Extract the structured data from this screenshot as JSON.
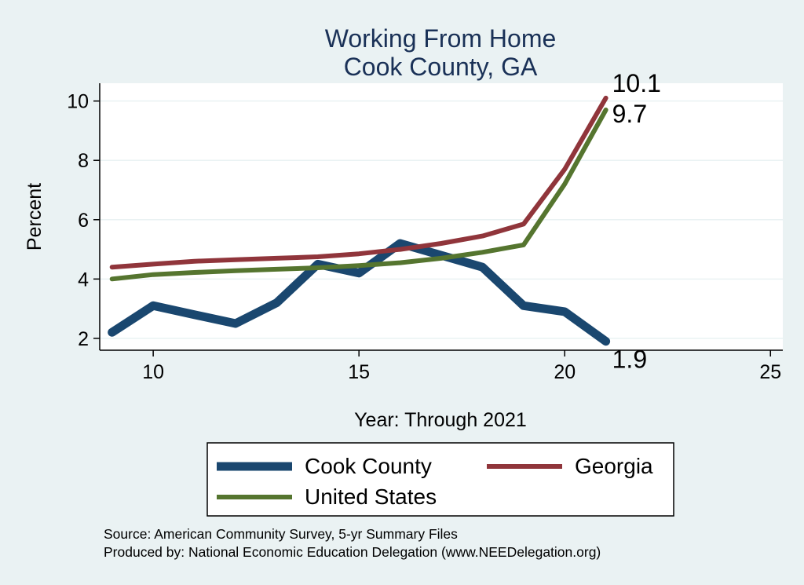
{
  "chart_data": {
    "type": "line",
    "title": [
      "Working From Home",
      "Cook County, GA"
    ],
    "xlabel": "Year: Through 2021",
    "ylabel": "Percent",
    "xlim": [
      8.7,
      25.3
    ],
    "ylim": [
      1.6,
      10.6
    ],
    "xticks": [
      10,
      15,
      20,
      25
    ],
    "yticks": [
      2,
      4,
      6,
      8,
      10
    ],
    "grid": true,
    "legend_position": "bottom",
    "series": [
      {
        "name": "Cook County",
        "color": "#1a476f",
        "x": [
          9,
          10,
          11,
          12,
          13,
          14,
          15,
          16,
          17,
          18,
          19,
          20,
          21
        ],
        "y": [
          2.2,
          3.1,
          2.8,
          2.5,
          3.2,
          4.5,
          4.2,
          5.2,
          4.8,
          4.4,
          3.1,
          2.9,
          1.9
        ],
        "end_label": "1.9"
      },
      {
        "name": "Georgia",
        "color": "#90353b",
        "x": [
          9,
          10,
          11,
          12,
          13,
          14,
          15,
          16,
          17,
          18,
          19,
          20,
          21
        ],
        "y": [
          4.4,
          4.5,
          4.6,
          4.65,
          4.7,
          4.75,
          4.85,
          5.0,
          5.2,
          5.45,
          5.85,
          7.7,
          10.1
        ],
        "end_label": "10.1"
      },
      {
        "name": "United States",
        "color": "#55752f",
        "x": [
          9,
          10,
          11,
          12,
          13,
          14,
          15,
          16,
          17,
          18,
          19,
          20,
          21
        ],
        "y": [
          4.0,
          4.15,
          4.22,
          4.28,
          4.33,
          4.38,
          4.45,
          4.55,
          4.7,
          4.9,
          5.15,
          7.2,
          9.7
        ],
        "end_label": "9.7"
      }
    ],
    "footnotes": [
      "Source: American Community Survey, 5-yr Summary Files",
      "Produced by: National Economic Education Delegation (www.NEEDelegation.org)"
    ]
  }
}
